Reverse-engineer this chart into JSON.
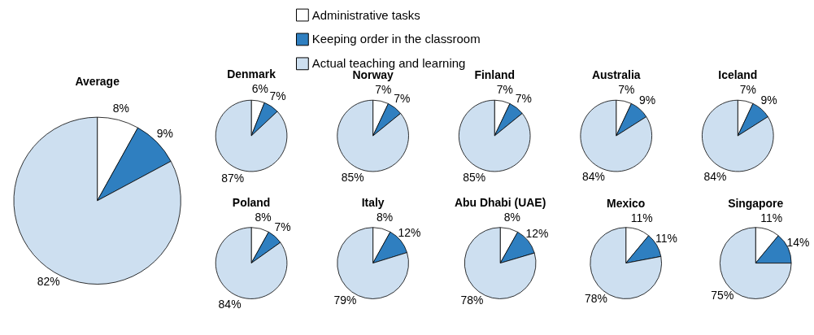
{
  "chart_data": [
    {
      "type": "pie",
      "title": "Average",
      "legend": "top",
      "categories": [
        "Administrative tasks",
        "Keeping order in the classroom",
        "Actual teaching and learning"
      ],
      "values": [
        8,
        9,
        82
      ],
      "colors": [
        "#ffffff",
        "#2f7fc0",
        "#cddff0"
      ],
      "value_labels": [
        "8%",
        "9%",
        "82%"
      ]
    },
    {
      "type": "pie",
      "title": "Denmark",
      "values": [
        6,
        7,
        87
      ],
      "colors": [
        "#ffffff",
        "#2f7fc0",
        "#cddff0"
      ],
      "value_labels": [
        "6%",
        "7%",
        "87%"
      ]
    },
    {
      "type": "pie",
      "title": "Norway",
      "values": [
        7,
        7,
        85
      ],
      "colors": [
        "#ffffff",
        "#2f7fc0",
        "#cddff0"
      ],
      "value_labels": [
        "7%",
        "7%",
        "85%"
      ]
    },
    {
      "type": "pie",
      "title": "Finland",
      "values": [
        7,
        7,
        85
      ],
      "colors": [
        "#ffffff",
        "#2f7fc0",
        "#cddff0"
      ],
      "value_labels": [
        "7%",
        "7%",
        "85%"
      ]
    },
    {
      "type": "pie",
      "title": "Australia",
      "values": [
        7,
        9,
        84
      ],
      "colors": [
        "#ffffff",
        "#2f7fc0",
        "#cddff0"
      ],
      "value_labels": [
        "7%",
        "9%",
        "84%"
      ]
    },
    {
      "type": "pie",
      "title": "Iceland",
      "values": [
        7,
        9,
        84
      ],
      "colors": [
        "#ffffff",
        "#2f7fc0",
        "#cddff0"
      ],
      "value_labels": [
        "7%",
        "9%",
        "84%"
      ]
    },
    {
      "type": "pie",
      "title": "Poland",
      "values": [
        8,
        7,
        84
      ],
      "colors": [
        "#ffffff",
        "#2f7fc0",
        "#cddff0"
      ],
      "value_labels": [
        "8%",
        "7%",
        "84%"
      ]
    },
    {
      "type": "pie",
      "title": "Italy",
      "values": [
        8,
        12,
        79
      ],
      "colors": [
        "#ffffff",
        "#2f7fc0",
        "#cddff0"
      ],
      "value_labels": [
        "8%",
        "12%",
        "79%"
      ]
    },
    {
      "type": "pie",
      "title": "Abu Dhabi (UAE)",
      "values": [
        8,
        12,
        78
      ],
      "colors": [
        "#ffffff",
        "#2f7fc0",
        "#cddff0"
      ],
      "value_labels": [
        "8%",
        "12%",
        "78%"
      ]
    },
    {
      "type": "pie",
      "title": "Mexico",
      "values": [
        11,
        11,
        78
      ],
      "colors": [
        "#ffffff",
        "#2f7fc0",
        "#cddff0"
      ],
      "value_labels": [
        "11%",
        "11%",
        "78%"
      ]
    },
    {
      "type": "pie",
      "title": "Singapore",
      "values": [
        11,
        14,
        75
      ],
      "colors": [
        "#ffffff",
        "#2f7fc0",
        "#cddff0"
      ],
      "value_labels": [
        "11%",
        "14%",
        "75%"
      ]
    }
  ]
}
